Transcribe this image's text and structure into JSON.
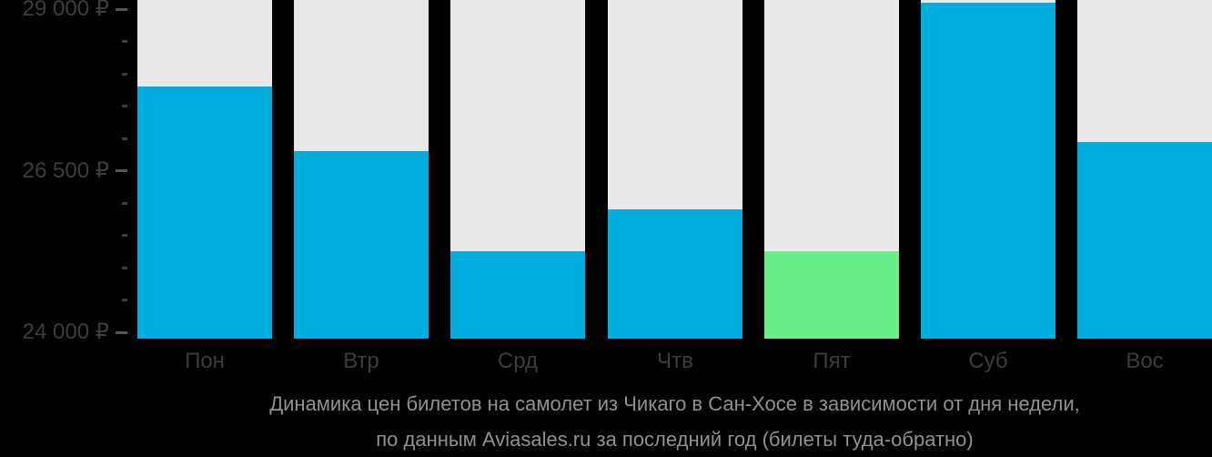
{
  "chart_data": {
    "type": "bar",
    "title": "",
    "xlabel": "",
    "ylabel": "",
    "categories": [
      "Пон",
      "Втр",
      "Срд",
      "Чтв",
      "Пят",
      "Суб",
      "Вос"
    ],
    "values": [
      27800,
      26800,
      25250,
      25900,
      25250,
      29100,
      26950
    ],
    "highlight_index": 5,
    "lowlight_index": 4,
    "ylim": [
      24000,
      29000
    ],
    "ytick_major_values": [
      24000,
      26500,
      29000
    ],
    "ytick_major_labels": [
      "24 000 ₽",
      "26 500 ₽",
      "29 000 ₽"
    ],
    "ytick_minor_step": 500,
    "grid": false,
    "legend": null,
    "colors": {
      "background": "#000000",
      "column_background": "#e9e9e9",
      "bar": "#00aede",
      "highlight_bar": "#69ee8a",
      "axis_label": "#3d3d3d",
      "major_tick": "#565656",
      "minor_tick": "#3e3e3e",
      "caption": "#919191"
    }
  },
  "caption": {
    "line1": "Динамика цен билетов на самолет из Чикаго в Сан-Хосе в зависимости от дня недели,",
    "line2": "по данным Aviasales.ru за последний год (билеты туда-обратно)"
  }
}
